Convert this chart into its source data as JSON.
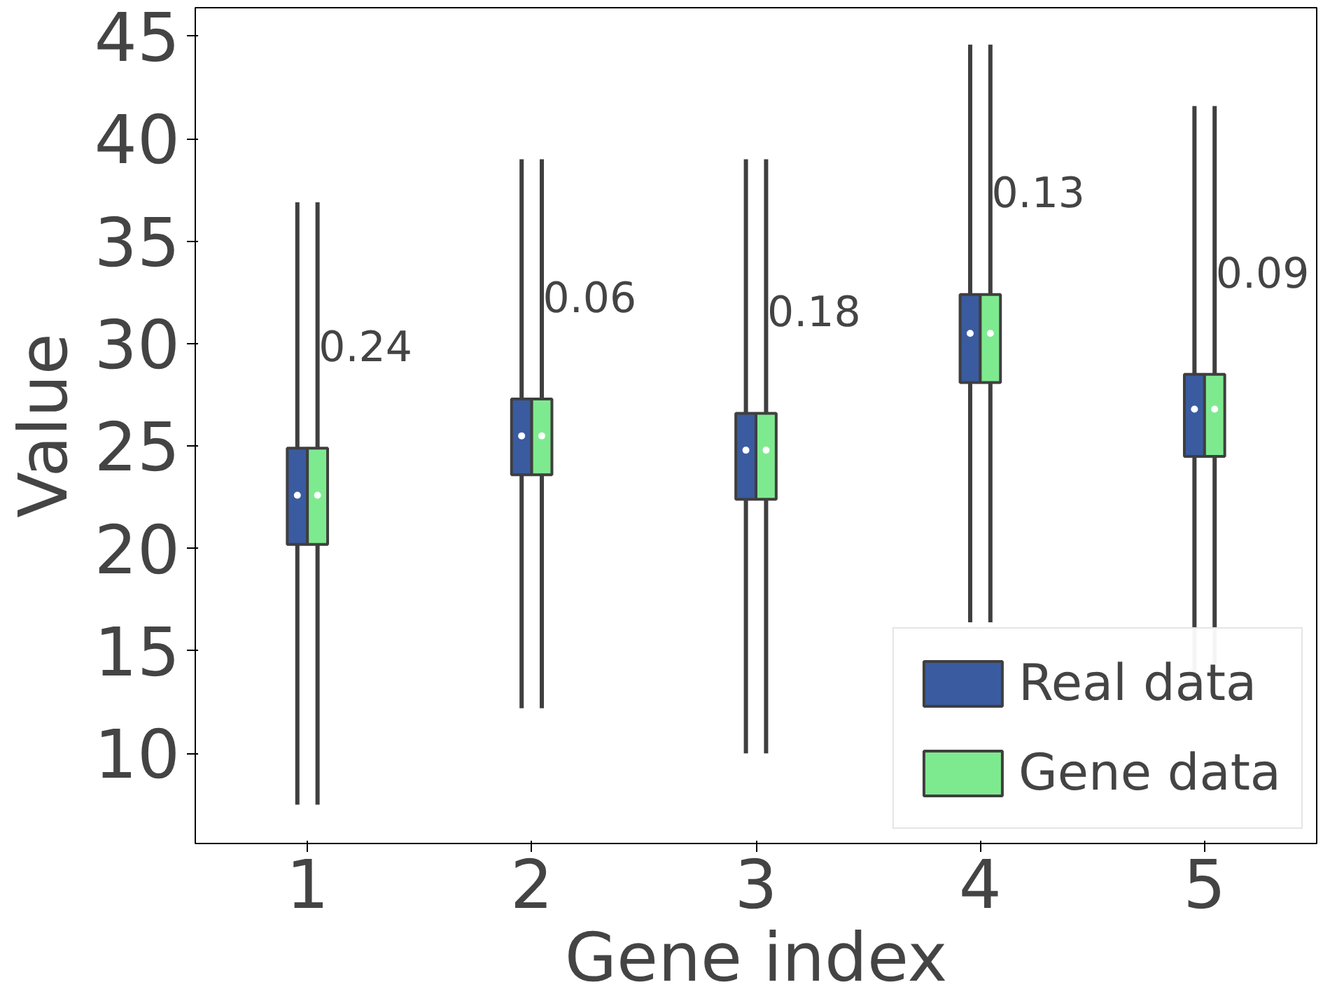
{
  "chart_data": {
    "type": "box",
    "xlabel": "Gene index",
    "ylabel": "Value",
    "categories": [
      "1",
      "2",
      "3",
      "4",
      "5"
    ],
    "series": [
      {
        "name": "Real data",
        "color": "#3a5ba0",
        "boxes": [
          {
            "low": 7.5,
            "q1": 20.2,
            "median": 22.6,
            "q3": 24.9,
            "high": 36.9
          },
          {
            "low": 12.2,
            "q1": 23.6,
            "median": 25.5,
            "q3": 27.3,
            "high": 39.0
          },
          {
            "low": 10.0,
            "q1": 22.4,
            "median": 24.8,
            "q3": 26.6,
            "high": 39.0
          },
          {
            "low": 16.4,
            "q1": 28.1,
            "median": 30.5,
            "q3": 32.4,
            "high": 44.6
          },
          {
            "low": 12.8,
            "q1": 24.5,
            "median": 26.8,
            "q3": 28.5,
            "high": 41.6
          }
        ]
      },
      {
        "name": "Gene data",
        "color": "#7eea8f",
        "boxes": [
          {
            "low": 7.5,
            "q1": 20.2,
            "median": 22.6,
            "q3": 24.9,
            "high": 36.9
          },
          {
            "low": 12.2,
            "q1": 23.6,
            "median": 25.5,
            "q3": 27.3,
            "high": 39.0
          },
          {
            "low": 10.0,
            "q1": 22.4,
            "median": 24.8,
            "q3": 26.6,
            "high": 39.0
          },
          {
            "low": 16.4,
            "q1": 28.1,
            "median": 30.5,
            "q3": 32.4,
            "high": 44.6
          },
          {
            "low": 12.8,
            "q1": 24.5,
            "median": 26.8,
            "q3": 28.5,
            "high": 41.6
          }
        ]
      }
    ],
    "annotations": [
      "0.24",
      "0.06",
      "0.18",
      "0.13",
      "0.09"
    ],
    "ylim": [
      5.6,
      46.4
    ],
    "yticks": [
      10,
      15,
      20,
      25,
      30,
      35,
      40,
      45
    ],
    "grid": false,
    "legend": "bottom right"
  }
}
